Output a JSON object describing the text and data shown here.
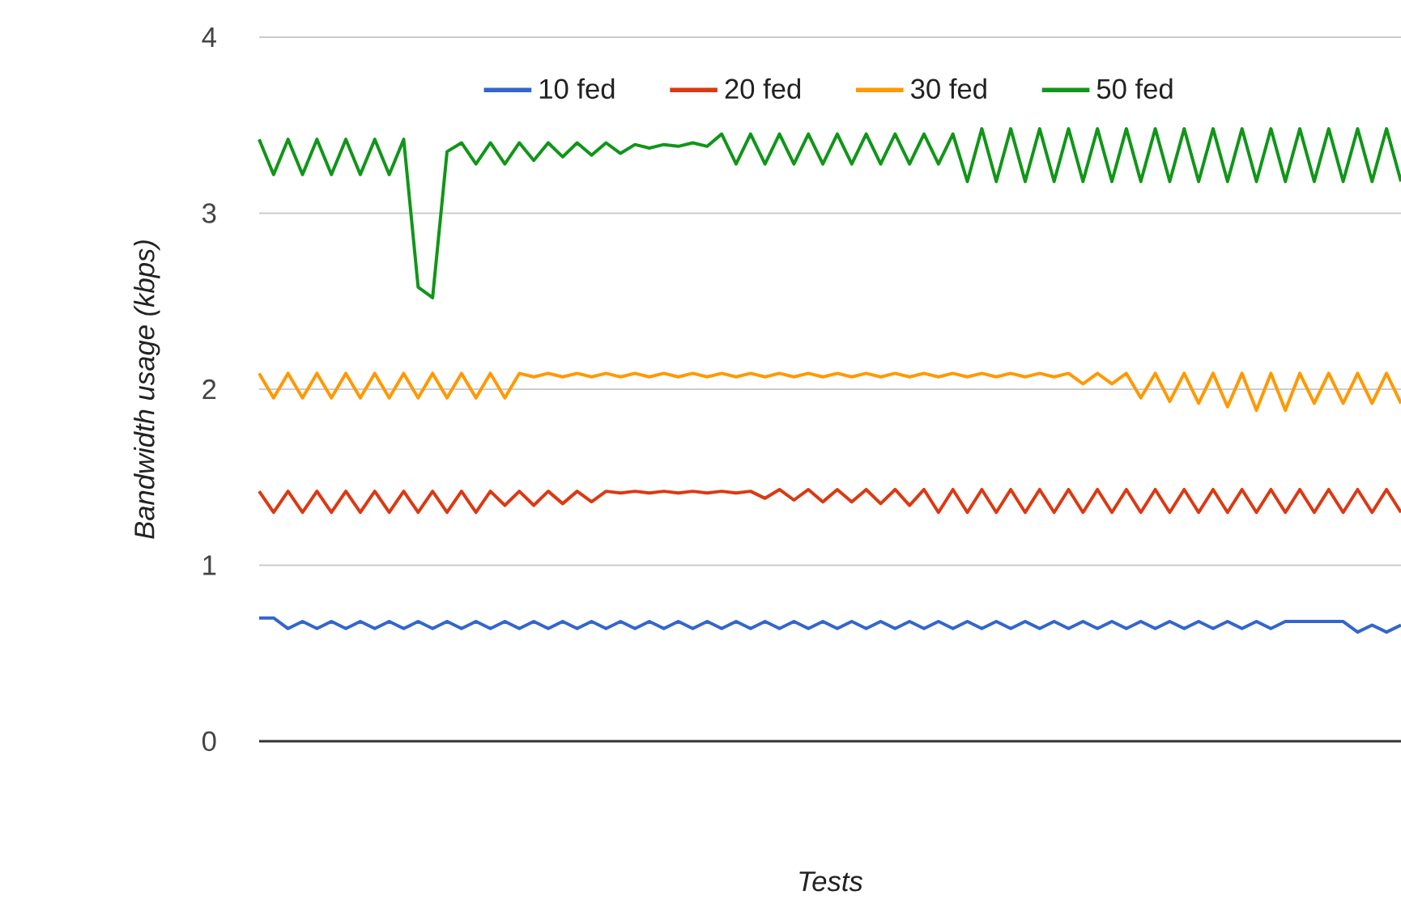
{
  "chart_data": {
    "type": "line",
    "xlabel": "Tests",
    "ylabel": "Bandwidth usage (kbps)",
    "categories": [
      null,
      null,
      null,
      null,
      null,
      null,
      null,
      null,
      null,
      null,
      null,
      null,
      null,
      null,
      null,
      null,
      null,
      null,
      null,
      null,
      null,
      null,
      null,
      null,
      null,
      null,
      null,
      null,
      null,
      null,
      null,
      null,
      null,
      null,
      null,
      null,
      null,
      null,
      null,
      null,
      null,
      null,
      null,
      null,
      null,
      null,
      null,
      null,
      null,
      null,
      null,
      null,
      null,
      null,
      null,
      null,
      null,
      null,
      null,
      null,
      null,
      null,
      null,
      null,
      null,
      null,
      null,
      null,
      null,
      null,
      null,
      null,
      null,
      null,
      null,
      null,
      null,
      null,
      null,
      null
    ],
    "series": [
      {
        "name": "10 fed",
        "color": "#3366cc",
        "values": [
          0.7,
          0.7,
          0.64,
          0.68,
          0.64,
          0.68,
          0.64,
          0.68,
          0.64,
          0.68,
          0.64,
          0.68,
          0.64,
          0.68,
          0.64,
          0.68,
          0.64,
          0.68,
          0.64,
          0.68,
          0.64,
          0.68,
          0.64,
          0.68,
          0.64,
          0.68,
          0.64,
          0.68,
          0.64,
          0.68,
          0.64,
          0.68,
          0.64,
          0.68,
          0.64,
          0.68,
          0.64,
          0.68,
          0.64,
          0.68,
          0.64,
          0.68,
          0.64,
          0.68,
          0.64,
          0.68,
          0.64,
          0.68,
          0.64,
          0.68,
          0.64,
          0.68,
          0.64,
          0.68,
          0.64,
          0.68,
          0.64,
          0.68,
          0.64,
          0.68,
          0.64,
          0.68,
          0.64,
          0.68,
          0.64,
          0.68,
          0.64,
          0.68,
          0.64,
          0.68,
          0.64,
          0.68,
          0.68,
          0.68,
          0.68,
          0.68,
          0.62,
          0.66,
          0.62,
          0.66
        ]
      },
      {
        "name": "20 fed",
        "color": "#dc3912",
        "values": [
          1.42,
          1.3,
          1.42,
          1.3,
          1.42,
          1.3,
          1.42,
          1.3,
          1.42,
          1.3,
          1.42,
          1.3,
          1.42,
          1.3,
          1.42,
          1.3,
          1.42,
          1.34,
          1.42,
          1.34,
          1.42,
          1.35,
          1.42,
          1.36,
          1.42,
          1.41,
          1.42,
          1.41,
          1.42,
          1.41,
          1.42,
          1.41,
          1.42,
          1.41,
          1.42,
          1.38,
          1.43,
          1.37,
          1.43,
          1.36,
          1.43,
          1.36,
          1.43,
          1.35,
          1.43,
          1.34,
          1.43,
          1.3,
          1.43,
          1.3,
          1.43,
          1.3,
          1.43,
          1.3,
          1.43,
          1.3,
          1.43,
          1.3,
          1.43,
          1.3,
          1.43,
          1.3,
          1.43,
          1.3,
          1.43,
          1.3,
          1.43,
          1.3,
          1.43,
          1.3,
          1.43,
          1.3,
          1.43,
          1.3,
          1.43,
          1.3,
          1.43,
          1.3,
          1.43,
          1.3
        ]
      },
      {
        "name": "30 fed",
        "color": "#ff9900",
        "values": [
          2.09,
          1.95,
          2.09,
          1.95,
          2.09,
          1.95,
          2.09,
          1.95,
          2.09,
          1.95,
          2.09,
          1.95,
          2.09,
          1.95,
          2.09,
          1.95,
          2.09,
          1.95,
          2.09,
          2.07,
          2.09,
          2.07,
          2.09,
          2.07,
          2.09,
          2.07,
          2.09,
          2.07,
          2.09,
          2.07,
          2.09,
          2.07,
          2.09,
          2.07,
          2.09,
          2.07,
          2.09,
          2.07,
          2.09,
          2.07,
          2.09,
          2.07,
          2.09,
          2.07,
          2.09,
          2.07,
          2.09,
          2.07,
          2.09,
          2.07,
          2.09,
          2.07,
          2.09,
          2.07,
          2.09,
          2.07,
          2.09,
          2.03,
          2.09,
          2.03,
          2.09,
          1.95,
          2.09,
          1.93,
          2.09,
          1.92,
          2.09,
          1.9,
          2.09,
          1.88,
          2.09,
          1.88,
          2.09,
          1.92,
          2.09,
          1.92,
          2.09,
          1.92,
          2.09,
          1.92
        ]
      },
      {
        "name": "50 fed",
        "color": "#109618",
        "values": [
          3.42,
          3.22,
          3.42,
          3.22,
          3.42,
          3.22,
          3.42,
          3.22,
          3.42,
          3.22,
          3.42,
          2.58,
          2.52,
          3.35,
          3.4,
          3.28,
          3.4,
          3.28,
          3.4,
          3.3,
          3.4,
          3.32,
          3.4,
          3.33,
          3.4,
          3.34,
          3.39,
          3.37,
          3.39,
          3.38,
          3.4,
          3.38,
          3.45,
          3.28,
          3.45,
          3.28,
          3.45,
          3.28,
          3.45,
          3.28,
          3.45,
          3.28,
          3.45,
          3.28,
          3.45,
          3.28,
          3.45,
          3.28,
          3.45,
          3.18,
          3.48,
          3.18,
          3.48,
          3.18,
          3.48,
          3.18,
          3.48,
          3.18,
          3.48,
          3.18,
          3.48,
          3.18,
          3.48,
          3.18,
          3.48,
          3.18,
          3.48,
          3.18,
          3.48,
          3.18,
          3.48,
          3.18,
          3.48,
          3.18,
          3.48,
          3.18,
          3.48,
          3.18,
          3.48,
          3.18
        ]
      }
    ],
    "ylim": [
      0,
      4
    ],
    "yticks": [
      0,
      1,
      2,
      3,
      4
    ],
    "grid": "y",
    "legend": "top",
    "tick_labels": "y"
  }
}
